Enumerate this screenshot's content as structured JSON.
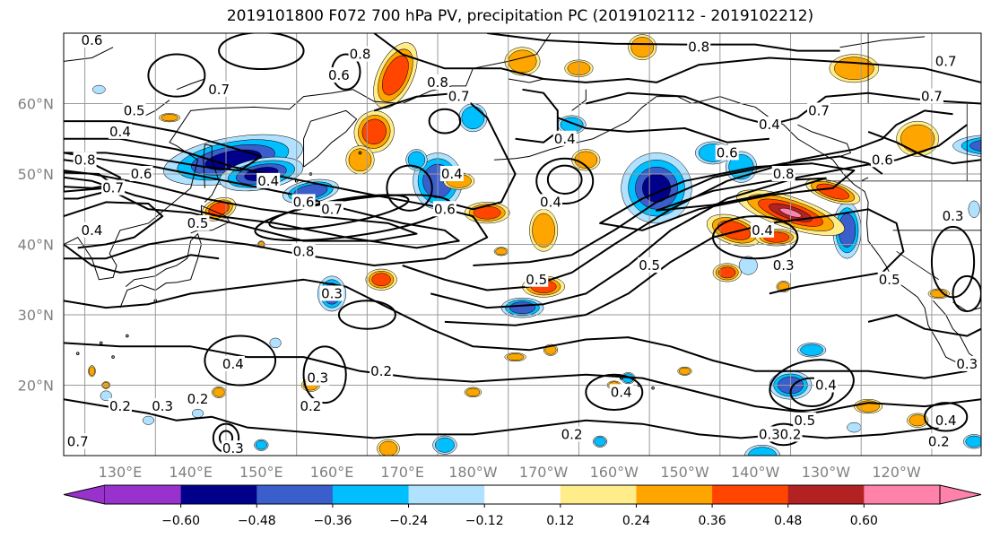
{
  "chart_data": {
    "type": "heatmap",
    "title": "2019101800 F072 700 hPa PV, precipitation PC (2019102112 - 2019102212)",
    "lat_ticks": [
      "60°N",
      "50°N",
      "40°N",
      "30°N",
      "20°N"
    ],
    "lon_ticks": [
      "130°E",
      "140°E",
      "150°E",
      "160°E",
      "170°E",
      "180°W",
      "170°W",
      "160°W",
      "150°W",
      "140°W",
      "130°W",
      "120°W"
    ],
    "extent": {
      "lon": [
        122,
        252
      ],
      "lat": [
        10,
        70
      ]
    },
    "contour_levels": [
      0.2,
      0.3,
      0.4,
      0.5,
      0.6,
      0.7,
      0.8
    ],
    "colorbar": {
      "ticks": [
        "−0.60",
        "−0.48",
        "−0.36",
        "−0.24",
        "−0.12",
        "0.12",
        "0.24",
        "0.36",
        "0.48",
        "0.60"
      ],
      "boundaries": [
        -0.6,
        -0.48,
        -0.36,
        -0.24,
        -0.12,
        0.12,
        0.24,
        0.36,
        0.48,
        0.6
      ],
      "colors": [
        "#9932cc",
        "#00008b",
        "#3a5ecb",
        "#00bfff",
        "#b0e2ff",
        "#ffffff",
        "#ffec8b",
        "#ffa500",
        "#ff4500",
        "#b22222",
        "#ff82ab"
      ],
      "extend": "both"
    },
    "contour_labels": [
      {
        "text": "0.6",
        "lon": 126,
        "lat": 69
      },
      {
        "text": "0.6",
        "lon": 161,
        "lat": 64
      },
      {
        "text": "0.7",
        "lon": 144,
        "lat": 62
      },
      {
        "text": "0.8",
        "lon": 164,
        "lat": 67
      },
      {
        "text": "0.8",
        "lon": 175,
        "lat": 63
      },
      {
        "text": "0.7",
        "lon": 178,
        "lat": 61
      },
      {
        "text": "0.5",
        "lon": 132,
        "lat": 59
      },
      {
        "text": "0.4",
        "lon": 130,
        "lat": 56
      },
      {
        "text": "0.8",
        "lon": 125,
        "lat": 52
      },
      {
        "text": "0.6",
        "lon": 133,
        "lat": 50
      },
      {
        "text": "0.7",
        "lon": 129,
        "lat": 48
      },
      {
        "text": "0.4",
        "lon": 126,
        "lat": 42
      },
      {
        "text": "0.5",
        "lon": 141,
        "lat": 43
      },
      {
        "text": "0.4",
        "lon": 151,
        "lat": 49
      },
      {
        "text": "0.6",
        "lon": 156,
        "lat": 46
      },
      {
        "text": "0.7",
        "lon": 160,
        "lat": 45
      },
      {
        "text": "0.8",
        "lon": 156,
        "lat": 39
      },
      {
        "text": "0.4",
        "lon": 177,
        "lat": 50
      },
      {
        "text": "0.6",
        "lon": 176,
        "lat": 45
      },
      {
        "text": "0.4",
        "lon": 191,
        "lat": 46
      },
      {
        "text": "0.4",
        "lon": 193,
        "lat": 55
      },
      {
        "text": "0.8",
        "lon": 212,
        "lat": 68
      },
      {
        "text": "0.7",
        "lon": 229,
        "lat": 59
      },
      {
        "text": "0.4",
        "lon": 222,
        "lat": 57
      },
      {
        "text": "0.6",
        "lon": 216,
        "lat": 53
      },
      {
        "text": "0.8",
        "lon": 224,
        "lat": 50
      },
      {
        "text": "0.4",
        "lon": 221,
        "lat": 42
      },
      {
        "text": "0.5",
        "lon": 205,
        "lat": 37
      },
      {
        "text": "0.5",
        "lon": 189,
        "lat": 35
      },
      {
        "text": "0.3",
        "lon": 160,
        "lat": 33
      },
      {
        "text": "0.3",
        "lon": 224,
        "lat": 37
      },
      {
        "text": "0.5",
        "lon": 239,
        "lat": 35
      },
      {
        "text": "0.4",
        "lon": 146,
        "lat": 23
      },
      {
        "text": "0.3",
        "lon": 158,
        "lat": 21
      },
      {
        "text": "0.2",
        "lon": 167,
        "lat": 22
      },
      {
        "text": "0.2",
        "lon": 130,
        "lat": 17
      },
      {
        "text": "0.3",
        "lon": 136,
        "lat": 17
      },
      {
        "text": "0.2",
        "lon": 141,
        "lat": 18
      },
      {
        "text": "0.2",
        "lon": 157,
        "lat": 17
      },
      {
        "text": "0.3",
        "lon": 146,
        "lat": 11
      },
      {
        "text": "0.7",
        "lon": 124,
        "lat": 12
      },
      {
        "text": "0.2",
        "lon": 194,
        "lat": 13
      },
      {
        "text": "0.4",
        "lon": 230,
        "lat": 20
      },
      {
        "text": "0.5",
        "lon": 227,
        "lat": 15
      },
      {
        "text": "0.3",
        "lon": 222,
        "lat": 13
      },
      {
        "text": "0.2",
        "lon": 225,
        "lat": 13
      },
      {
        "text": "0.4",
        "lon": 247,
        "lat": 15
      },
      {
        "text": "0.2",
        "lon": 246,
        "lat": 12
      },
      {
        "text": "0.3",
        "lon": 250,
        "lat": 23
      },
      {
        "text": "0.3",
        "lon": 248,
        "lat": 44
      },
      {
        "text": "0.7",
        "lon": 247,
        "lat": 66
      },
      {
        "text": "0.7",
        "lon": 245,
        "lat": 61
      },
      {
        "text": "0.4",
        "lon": 201,
        "lat": 19
      },
      {
        "text": "0.6",
        "lon": 238,
        "lat": 52
      }
    ]
  }
}
